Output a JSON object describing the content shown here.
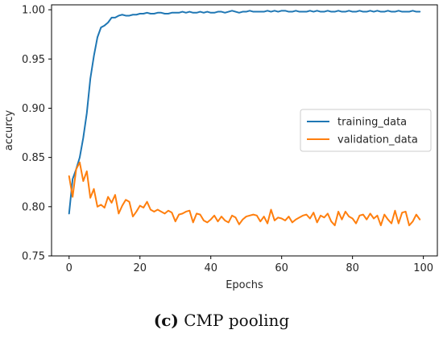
{
  "chart_data": {
    "type": "line",
    "title": "",
    "xlabel": "Epochs",
    "ylabel": "accurcy",
    "xlim": [
      -4.95,
      103.95
    ],
    "ylim": [
      0.75,
      1.005
    ],
    "xticks": [
      0,
      20,
      40,
      60,
      80,
      100
    ],
    "yticks": [
      0.75,
      0.8,
      0.85,
      0.9,
      0.95,
      1.0
    ],
    "ytick_labels": [
      "0.75",
      "0.80",
      "0.85",
      "0.90",
      "0.95",
      "1.00"
    ],
    "grid": false,
    "legend_position": "center-right",
    "series": [
      {
        "name": "training_data",
        "color": "#1f77b4",
        "x": [
          0,
          1,
          2,
          3,
          4,
          5,
          6,
          7,
          8,
          9,
          10,
          11,
          12,
          13,
          14,
          15,
          16,
          17,
          18,
          19,
          20,
          21,
          22,
          23,
          24,
          25,
          26,
          27,
          28,
          29,
          30,
          31,
          32,
          33,
          34,
          35,
          36,
          37,
          38,
          39,
          40,
          41,
          42,
          43,
          44,
          45,
          46,
          47,
          48,
          49,
          50,
          51,
          52,
          53,
          54,
          55,
          56,
          57,
          58,
          59,
          60,
          61,
          62,
          63,
          64,
          65,
          66,
          67,
          68,
          69,
          70,
          71,
          72,
          73,
          74,
          75,
          76,
          77,
          78,
          79,
          80,
          81,
          82,
          83,
          84,
          85,
          86,
          87,
          88,
          89,
          90,
          91,
          92,
          93,
          94,
          95,
          96,
          97,
          98,
          99
        ],
        "values": [
          0.793,
          0.828,
          0.838,
          0.85,
          0.87,
          0.895,
          0.93,
          0.953,
          0.972,
          0.982,
          0.984,
          0.987,
          0.992,
          0.992,
          0.994,
          0.995,
          0.994,
          0.994,
          0.995,
          0.995,
          0.996,
          0.996,
          0.997,
          0.996,
          0.996,
          0.997,
          0.997,
          0.996,
          0.996,
          0.997,
          0.997,
          0.997,
          0.998,
          0.997,
          0.998,
          0.997,
          0.997,
          0.998,
          0.997,
          0.998,
          0.997,
          0.997,
          0.998,
          0.998,
          0.997,
          0.998,
          0.999,
          0.998,
          0.997,
          0.998,
          0.998,
          0.999,
          0.998,
          0.998,
          0.998,
          0.998,
          0.999,
          0.998,
          0.999,
          0.998,
          0.999,
          0.999,
          0.998,
          0.998,
          0.999,
          0.998,
          0.998,
          0.998,
          0.999,
          0.998,
          0.999,
          0.998,
          0.998,
          0.999,
          0.998,
          0.998,
          0.999,
          0.998,
          0.998,
          0.999,
          0.998,
          0.998,
          0.999,
          0.998,
          0.998,
          0.999,
          0.998,
          0.999,
          0.998,
          0.998,
          0.999,
          0.998,
          0.998,
          0.999,
          0.998,
          0.998,
          0.998,
          0.999,
          0.998,
          0.998
        ]
      },
      {
        "name": "validation_data",
        "color": "#ff7f0e",
        "x": [
          0,
          1,
          2,
          3,
          4,
          5,
          6,
          7,
          8,
          9,
          10,
          11,
          12,
          13,
          14,
          15,
          16,
          17,
          18,
          19,
          20,
          21,
          22,
          23,
          24,
          25,
          26,
          27,
          28,
          29,
          30,
          31,
          32,
          33,
          34,
          35,
          36,
          37,
          38,
          39,
          40,
          41,
          42,
          43,
          44,
          45,
          46,
          47,
          48,
          49,
          50,
          51,
          52,
          53,
          54,
          55,
          56,
          57,
          58,
          59,
          60,
          61,
          62,
          63,
          64,
          65,
          66,
          67,
          68,
          69,
          70,
          71,
          72,
          73,
          74,
          75,
          76,
          77,
          78,
          79,
          80,
          81,
          82,
          83,
          84,
          85,
          86,
          87,
          88,
          89,
          90,
          91,
          92,
          93,
          94,
          95,
          96,
          97,
          98,
          99
        ],
        "values": [
          0.831,
          0.81,
          0.838,
          0.845,
          0.826,
          0.836,
          0.809,
          0.818,
          0.8,
          0.802,
          0.799,
          0.81,
          0.804,
          0.812,
          0.793,
          0.801,
          0.807,
          0.805,
          0.79,
          0.795,
          0.801,
          0.799,
          0.805,
          0.797,
          0.795,
          0.797,
          0.795,
          0.793,
          0.796,
          0.794,
          0.785,
          0.792,
          0.793,
          0.795,
          0.796,
          0.784,
          0.793,
          0.792,
          0.786,
          0.784,
          0.787,
          0.791,
          0.785,
          0.79,
          0.786,
          0.784,
          0.791,
          0.789,
          0.782,
          0.787,
          0.79,
          0.791,
          0.792,
          0.791,
          0.785,
          0.79,
          0.783,
          0.797,
          0.786,
          0.789,
          0.788,
          0.786,
          0.79,
          0.784,
          0.787,
          0.789,
          0.791,
          0.792,
          0.788,
          0.794,
          0.784,
          0.791,
          0.789,
          0.793,
          0.785,
          0.781,
          0.795,
          0.787,
          0.795,
          0.79,
          0.788,
          0.783,
          0.791,
          0.792,
          0.787,
          0.793,
          0.788,
          0.791,
          0.781,
          0.792,
          0.787,
          0.783,
          0.796,
          0.783,
          0.794,
          0.795,
          0.781,
          0.785,
          0.792,
          0.787
        ]
      }
    ]
  },
  "caption": {
    "label": "(c)",
    "text": " CMP pooling"
  }
}
